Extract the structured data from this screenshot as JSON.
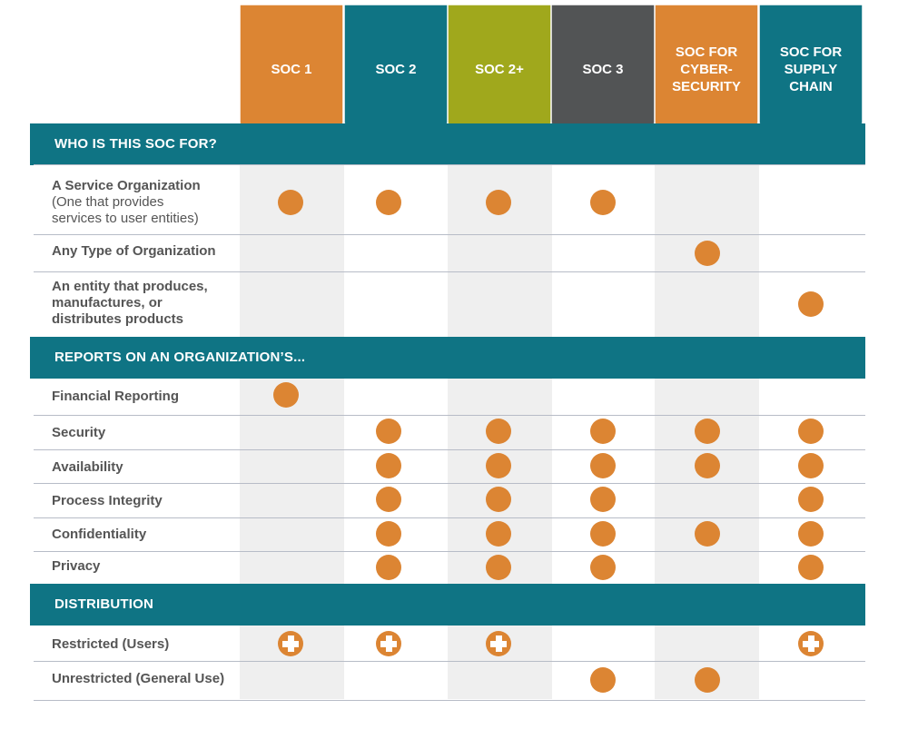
{
  "columns": [
    {
      "label": "SOC 1",
      "color": "#dc8533"
    },
    {
      "label": "SOC 2",
      "color": "#0f7484"
    },
    {
      "label": "SOC 2+",
      "color": "#a0a81c"
    },
    {
      "label": "SOC 3",
      "color": "#525455"
    },
    {
      "label": "SOC FOR\nCYBER-\nSECURITY",
      "color": "#dc8533"
    },
    {
      "label": "SOC FOR\nSUPPLY\nCHAIN",
      "color": "#0f7484"
    }
  ],
  "sections": [
    {
      "title": "WHO IS THIS SOC FOR?"
    },
    {
      "title": "REPORTS ON AN ORGANIZATION’S..."
    },
    {
      "title": "DISTRIBUTION"
    }
  ],
  "rows": [
    {
      "label": "A Service Organization",
      "sublabel": "(One that provides\nservices to user entities)",
      "marks": [
        1,
        1,
        1,
        1,
        0,
        0
      ]
    },
    {
      "label": "Any Type of Organization",
      "marks": [
        0,
        0,
        0,
        0,
        1,
        0
      ]
    },
    {
      "label": "An entity that produces,\nmanufactures, or\ndistributes products",
      "marks": [
        0,
        0,
        0,
        0,
        0,
        1
      ]
    },
    {
      "label": "Financial Reporting",
      "marks": [
        1,
        0,
        0,
        0,
        0,
        0
      ]
    },
    {
      "label": "Security",
      "marks": [
        0,
        1,
        1,
        1,
        1,
        1
      ]
    },
    {
      "label": "Availability",
      "marks": [
        0,
        1,
        1,
        1,
        1,
        1
      ]
    },
    {
      "label": "Process Integrity",
      "marks": [
        0,
        1,
        1,
        1,
        0,
        1
      ]
    },
    {
      "label": "Confidentiality",
      "marks": [
        0,
        1,
        1,
        1,
        1,
        1
      ]
    },
    {
      "label": "Privacy",
      "marks": [
        0,
        1,
        1,
        1,
        0,
        1
      ]
    },
    {
      "label": "Restricted (Users)",
      "marks": [
        2,
        2,
        2,
        0,
        0,
        2
      ]
    },
    {
      "label": "Unrestricted (General Use)",
      "marks": [
        0,
        0,
        0,
        1,
        1,
        0
      ]
    }
  ],
  "legend_marks": {
    "dot": "filled-circle",
    "plus": "plus-circle-icon"
  },
  "colors": {
    "teal": "#0f7484",
    "orange": "#dc8533",
    "stripe": "#efefef",
    "rule": "#b7bcc7",
    "text": "#555555"
  }
}
